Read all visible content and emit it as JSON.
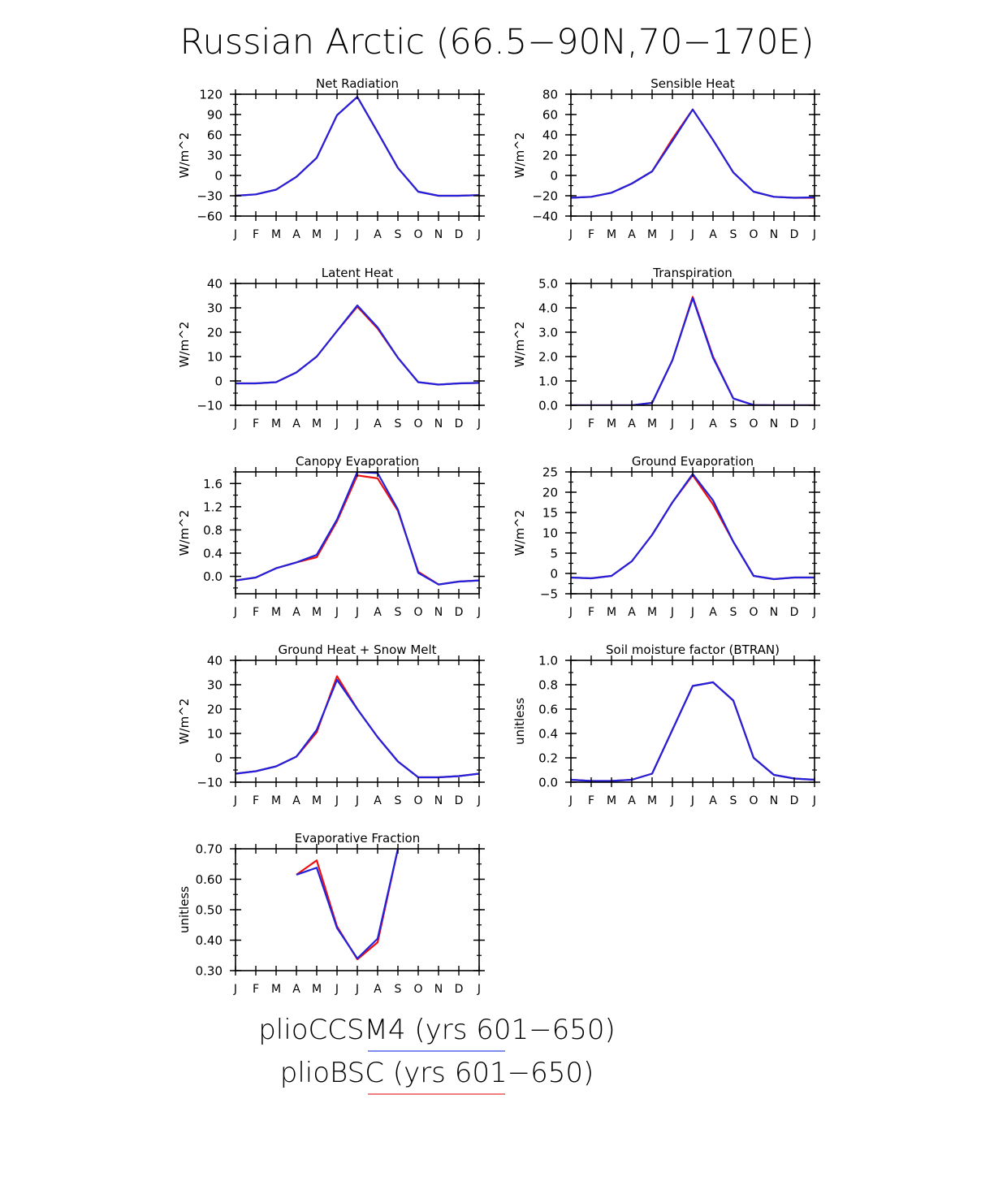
{
  "figure": {
    "title": "Russian Arctic (66.5−90N,70−170E)"
  },
  "colors": {
    "plioCCSM4": "#2222dd",
    "plioBSC": "#ee1111",
    "axis": "#000000"
  },
  "legend": {
    "entries": [
      {
        "label": "plioCCSM4 (yrs 601−650)",
        "color": "#5566ee"
      },
      {
        "label": "plioBSC (yrs 601−650)",
        "color": "#ee5555"
      }
    ]
  },
  "chart_data": [
    {
      "type": "line",
      "title": "Net Radiation",
      "ylabel": "W/m^2",
      "categories": [
        "J",
        "F",
        "M",
        "A",
        "M",
        "J",
        "J",
        "A",
        "S",
        "O",
        "N",
        "D",
        "J"
      ],
      "ylim": [
        -60,
        120
      ],
      "yticks": [
        -60,
        -30,
        0,
        30,
        60,
        90,
        120
      ],
      "ytick_labels": [
        "−60",
        "−30",
        "0",
        "30",
        "60",
        "90",
        "120"
      ],
      "series": [
        {
          "name": "plioBSC (yrs 601−650)",
          "values": [
            -30,
            -28,
            -21,
            -2,
            26,
            89,
            116,
            64,
            11,
            -24,
            -30,
            -30,
            -29
          ]
        },
        {
          "name": "plioCCSM4 (yrs 601−650)",
          "values": [
            -30,
            -28,
            -21,
            -2,
            26,
            89,
            116,
            64,
            11,
            -24,
            -30,
            -30,
            -29
          ]
        }
      ]
    },
    {
      "type": "line",
      "title": "Sensible Heat",
      "ylabel": "W/m^2",
      "categories": [
        "J",
        "F",
        "M",
        "A",
        "M",
        "J",
        "J",
        "A",
        "S",
        "O",
        "N",
        "D",
        "J"
      ],
      "ylim": [
        -40,
        80
      ],
      "yticks": [
        -40,
        -20,
        0,
        20,
        40,
        60,
        80
      ],
      "ytick_labels": [
        "−40",
        "−20",
        "0",
        "20",
        "40",
        "60",
        "80"
      ],
      "series": [
        {
          "name": "plioBSC (yrs 601−650)",
          "values": [
            -22,
            -21,
            -17,
            -8,
            4,
            36,
            65,
            35,
            3,
            -16,
            -21,
            -22,
            -22
          ]
        },
        {
          "name": "plioCCSM4 (yrs 601−650)",
          "values": [
            -22,
            -21,
            -17,
            -8,
            4,
            34,
            65,
            35,
            3,
            -16,
            -21,
            -22,
            -21.5
          ]
        }
      ]
    },
    {
      "type": "line",
      "title": "Latent Heat",
      "ylabel": "W/m^2",
      "categories": [
        "J",
        "F",
        "M",
        "A",
        "M",
        "J",
        "J",
        "A",
        "S",
        "O",
        "N",
        "D",
        "J"
      ],
      "ylim": [
        -10,
        40
      ],
      "yticks": [
        -10,
        0,
        10,
        20,
        30,
        40
      ],
      "ytick_labels": [
        "−10",
        "0",
        "10",
        "20",
        "30",
        "40"
      ],
      "series": [
        {
          "name": "plioBSC (yrs 601−650)",
          "values": [
            -1,
            -1,
            -0.5,
            3.5,
            10,
            20.5,
            30.5,
            21.5,
            9.5,
            -0.5,
            -1.5,
            -1,
            -0.8
          ]
        },
        {
          "name": "plioCCSM4 (yrs 601−650)",
          "values": [
            -1,
            -1,
            -0.5,
            3.5,
            10,
            20.5,
            31,
            22,
            9.5,
            -0.5,
            -1.5,
            -1,
            -0.8
          ]
        }
      ]
    },
    {
      "type": "line",
      "title": "Transpiration",
      "ylabel": "W/m^2",
      "categories": [
        "J",
        "F",
        "M",
        "A",
        "M",
        "J",
        "J",
        "A",
        "S",
        "O",
        "N",
        "D",
        "J"
      ],
      "ylim": [
        0,
        5
      ],
      "yticks": [
        0,
        1,
        2,
        3,
        4,
        5
      ],
      "ytick_labels": [
        "0.0",
        "1.0",
        "2.0",
        "3.0",
        "4.0",
        "5.0"
      ],
      "series": [
        {
          "name": "plioBSC (yrs 601−650)",
          "values": [
            0,
            0,
            0,
            0,
            0.1,
            1.85,
            4.45,
            2.0,
            0.28,
            0.01,
            0,
            0,
            0
          ]
        },
        {
          "name": "plioCCSM4 (yrs 601−650)",
          "values": [
            0,
            0,
            0,
            0,
            0.1,
            1.85,
            4.4,
            1.95,
            0.28,
            0.01,
            0,
            0,
            0
          ]
        }
      ]
    },
    {
      "type": "line",
      "title": "Canopy Evaporation",
      "ylabel": "W/m^2",
      "categories": [
        "J",
        "F",
        "M",
        "A",
        "M",
        "J",
        "J",
        "A",
        "S",
        "O",
        "N",
        "D",
        "J"
      ],
      "ylim": [
        -0.3,
        1.8
      ],
      "yticks": [
        0,
        0.4,
        0.8,
        1.2,
        1.6
      ],
      "ytick_labels": [
        "0.0",
        "0.4",
        "0.8",
        "1.2",
        "1.6"
      ],
      "series": [
        {
          "name": "plioBSC (yrs 601−650)",
          "values": [
            -0.07,
            -0.02,
            0.14,
            0.24,
            0.33,
            0.95,
            1.74,
            1.69,
            1.13,
            0.08,
            -0.14,
            -0.09,
            -0.07
          ]
        },
        {
          "name": "plioCCSM4 (yrs 601−650)",
          "values": [
            -0.07,
            -0.02,
            0.14,
            0.24,
            0.37,
            0.98,
            1.8,
            1.78,
            1.15,
            0.06,
            -0.14,
            -0.09,
            -0.07
          ]
        }
      ]
    },
    {
      "type": "line",
      "title": "Ground Evaporation",
      "ylabel": "W/m^2",
      "categories": [
        "J",
        "F",
        "M",
        "A",
        "M",
        "J",
        "J",
        "A",
        "S",
        "O",
        "N",
        "D",
        "J"
      ],
      "ylim": [
        -5,
        25
      ],
      "yticks": [
        -5,
        0,
        5,
        10,
        15,
        20,
        25
      ],
      "ytick_labels": [
        "−5",
        "0",
        "5",
        "10",
        "15",
        "20",
        "25"
      ],
      "series": [
        {
          "name": "plioBSC (yrs 601−650)",
          "values": [
            -1,
            -1.2,
            -0.6,
            3,
            9.5,
            17.5,
            24.2,
            17,
            7.8,
            -0.6,
            -1.4,
            -1,
            -1
          ]
        },
        {
          "name": "plioCCSM4 (yrs 601−650)",
          "values": [
            -1,
            -1.2,
            -0.6,
            3,
            9.5,
            17.5,
            24.5,
            18,
            7.8,
            -0.6,
            -1.4,
            -1,
            -1
          ]
        }
      ]
    },
    {
      "type": "line",
      "title": "Ground Heat + Snow Melt",
      "ylabel": "W/m^2",
      "categories": [
        "J",
        "F",
        "M",
        "A",
        "M",
        "J",
        "J",
        "A",
        "S",
        "O",
        "N",
        "D",
        "J"
      ],
      "ylim": [
        -10,
        40
      ],
      "yticks": [
        -10,
        0,
        10,
        20,
        30,
        40
      ],
      "ytick_labels": [
        "−10",
        "0",
        "10",
        "20",
        "30",
        "40"
      ],
      "series": [
        {
          "name": "plioBSC (yrs 601−650)",
          "values": [
            -6.5,
            -5.5,
            -3.5,
            0.5,
            10.5,
            33.5,
            20,
            8.5,
            -1.5,
            -8,
            -8,
            -7.5,
            -6.5
          ]
        },
        {
          "name": "plioCCSM4 (yrs 601−650)",
          "values": [
            -6.5,
            -5.5,
            -3.5,
            0.5,
            11.5,
            32,
            20,
            8.5,
            -1.5,
            -8,
            -8,
            -7.5,
            -6.5
          ]
        }
      ]
    },
    {
      "type": "line",
      "title": "Soil moisture factor (BTRAN)",
      "ylabel": "unitless",
      "categories": [
        "J",
        "F",
        "M",
        "A",
        "M",
        "J",
        "J",
        "A",
        "S",
        "O",
        "N",
        "D",
        "J"
      ],
      "ylim": [
        0,
        1
      ],
      "yticks": [
        0,
        0.2,
        0.4,
        0.6,
        0.8,
        1.0
      ],
      "ytick_labels": [
        "0.0",
        "0.2",
        "0.4",
        "0.6",
        "0.8",
        "1.0"
      ],
      "series": [
        {
          "name": "plioBSC (yrs 601−650)",
          "values": [
            0.02,
            0.01,
            0.01,
            0.02,
            0.07,
            0.43,
            0.79,
            0.82,
            0.67,
            0.2,
            0.06,
            0.03,
            0.02
          ]
        },
        {
          "name": "plioCCSM4 (yrs 601−650)",
          "values": [
            0.02,
            0.01,
            0.01,
            0.02,
            0.07,
            0.43,
            0.79,
            0.82,
            0.67,
            0.2,
            0.06,
            0.03,
            0.02
          ]
        }
      ]
    },
    {
      "type": "line",
      "title": "Evaporative Fraction",
      "ylabel": "unitless",
      "categories": [
        "J",
        "F",
        "M",
        "A",
        "M",
        "J",
        "J",
        "A",
        "S",
        "O",
        "N",
        "D",
        "J"
      ],
      "ylim": [
        0.3,
        0.7
      ],
      "yticks": [
        0.3,
        0.4,
        0.5,
        0.6,
        0.7
      ],
      "ytick_labels": [
        "0.30",
        "0.40",
        "0.50",
        "0.60",
        "0.70"
      ],
      "series": [
        {
          "name": "plioBSC (yrs 601−650)",
          "values": [
            null,
            null,
            null,
            0.615,
            0.662,
            0.445,
            0.337,
            0.393,
            0.7,
            null,
            null,
            null,
            null
          ]
        },
        {
          "name": "plioCCSM4 (yrs 601−650)",
          "values": [
            null,
            null,
            null,
            0.615,
            0.638,
            0.44,
            0.34,
            0.405,
            0.7,
            null,
            null,
            null,
            null
          ]
        }
      ]
    }
  ]
}
